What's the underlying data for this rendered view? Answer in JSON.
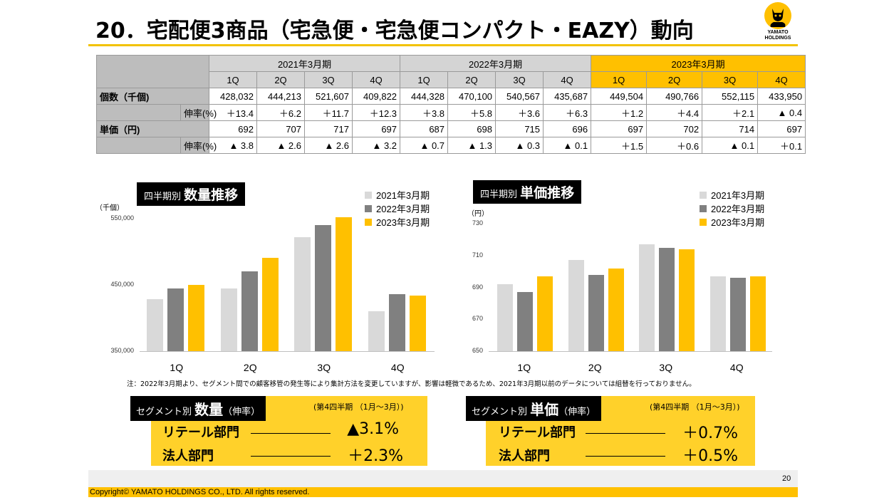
{
  "header": {
    "title": "20．宅配便3商品（宅急便・宅急便コンパクト・EAZY）動向",
    "logo_text_1": "YAMATO",
    "logo_text_2": "HOLDINGS",
    "logo_icon": "black-cat-icon"
  },
  "table": {
    "periods": [
      "2021年3月期",
      "2022年3月期",
      "2023年3月期"
    ],
    "quarters": [
      "1Q",
      "2Q",
      "3Q",
      "4Q",
      "1Q",
      "2Q",
      "3Q",
      "4Q",
      "1Q",
      "2Q",
      "3Q",
      "4Q"
    ],
    "rows": [
      {
        "label": "個数（千個)",
        "values": [
          "428,032",
          "444,213",
          "521,607",
          "409,822",
          "444,328",
          "470,100",
          "540,567",
          "435,687",
          "449,504",
          "490,766",
          "552,115",
          "433,950"
        ]
      },
      {
        "label": "伸率(%)",
        "values": [
          "＋13.4",
          "＋6.2",
          "＋11.7",
          "＋12.3",
          "＋3.8",
          "＋5.8",
          "＋3.6",
          "＋6.3",
          "＋1.2",
          "＋4.4",
          "＋2.1",
          "▲ 0.4"
        ]
      },
      {
        "label": "単価（円)",
        "values": [
          "692",
          "707",
          "717",
          "697",
          "687",
          "698",
          "715",
          "696",
          "697",
          "702",
          "714",
          "697"
        ]
      },
      {
        "label": "伸率(%)",
        "values": [
          "▲ 3.8",
          "▲ 2.6",
          "▲ 2.6",
          "▲ 3.2",
          "▲ 0.7",
          "▲ 1.3",
          "▲ 0.3",
          "▲ 0.1",
          "＋1.5",
          "＋0.6",
          "▲ 0.1",
          "＋0.1"
        ]
      }
    ]
  },
  "charts": {
    "volume_label_prefix": "四半期別 ",
    "volume_label_main": "数量推移",
    "price_label_prefix": "四半期別 ",
    "price_label_main": "単価推移",
    "volume_unit": "（千個）",
    "price_unit": "（円）"
  },
  "chart_data": [
    {
      "type": "bar",
      "categories": [
        "1Q",
        "2Q",
        "3Q",
        "4Q"
      ],
      "ylim": [
        350000,
        550000
      ],
      "yticks": [
        "350,000",
        "450,000",
        "550,000"
      ],
      "ytick_values": [
        350000,
        450000,
        550000
      ],
      "series": [
        {
          "name": "2021年3月期",
          "color": "#d9d9d9",
          "values": [
            428032,
            444213,
            521607,
            409822
          ]
        },
        {
          "name": "2022年3月期",
          "color": "#808080",
          "values": [
            444328,
            470100,
            540567,
            435687
          ]
        },
        {
          "name": "2023年3月期",
          "color": "#ffc000",
          "values": [
            449504,
            490766,
            552115,
            433950
          ]
        }
      ]
    },
    {
      "type": "bar",
      "categories": [
        "1Q",
        "2Q",
        "3Q",
        "4Q"
      ],
      "ylim": [
        650,
        730
      ],
      "yticks": [
        "650",
        "670",
        "690",
        "710",
        "730"
      ],
      "ytick_values": [
        650,
        670,
        690,
        710,
        730
      ],
      "series": [
        {
          "name": "2021年3月期",
          "color": "#d9d9d9",
          "values": [
            692,
            707,
            717,
            697
          ]
        },
        {
          "name": "2022年3月期",
          "color": "#808080",
          "values": [
            687,
            698,
            715,
            696
          ]
        },
        {
          "name": "2023年3月期",
          "color": "#ffc000",
          "values": [
            697,
            702,
            714,
            697
          ]
        }
      ]
    }
  ],
  "note": "注：2022年3月期より、セグメント間での顧客移管の発生等により集計方法を変更していますが、影響は軽微であるため、2021年3月期以前のデータについては組替を行っておりません。",
  "segments": {
    "volume": {
      "label_prefix": "セグメント別 ",
      "label_main": "数量",
      "label_suffix": "（伸率）",
      "period": "(第4四半期 （1月～3月）)",
      "rows": [
        {
          "name": "リテール部門",
          "value": "▲3.1%"
        },
        {
          "name": "法人部門",
          "value": "＋2.3%"
        }
      ]
    },
    "price": {
      "label_prefix": "セグメント別 ",
      "label_main": "単価",
      "label_suffix": "（伸率）",
      "period": "(第4四半期 （1月～3月）)",
      "rows": [
        {
          "name": "リテール部門",
          "value": "＋0.7%"
        },
        {
          "name": "法人部門",
          "value": "＋0.5%"
        }
      ]
    }
  },
  "footer": {
    "page": "20",
    "copyright": "Copyright© YAMATO HOLDINGS CO., LTD. All rights reserved."
  }
}
